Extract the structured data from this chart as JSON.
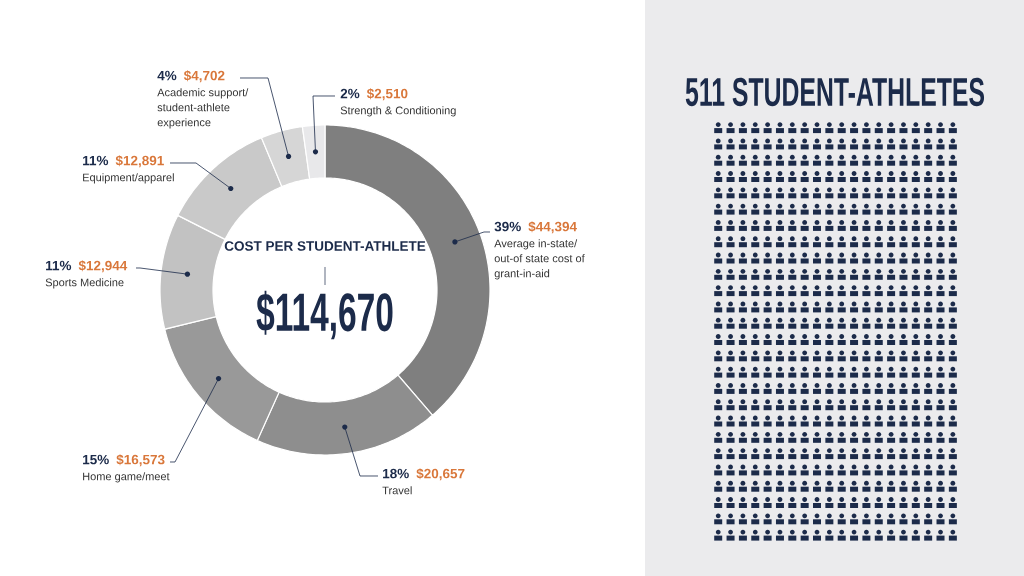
{
  "chart_data": {
    "type": "donut",
    "title": "COST PER STUDENT-ATHLETE",
    "subtitle": "$114,670",
    "categories": [
      "Average in-state/ out-of state cost of grant-in-aid",
      "Travel",
      "Home game/meet",
      "Sports Medicine",
      "Equipment/apparel",
      "Academic support/ student-athlete experience",
      "Strength & Conditioning"
    ],
    "values": [
      44394,
      20657,
      16573,
      12944,
      12891,
      4702,
      2510
    ],
    "colors": [
      "#7f7f7f",
      "#8e8e8e",
      "#999999",
      "#c2c2c2",
      "#c9c9c9",
      "#d6d6d6",
      "#e8e8ea"
    ],
    "value_labels": [
      "$44,394",
      "$20,657",
      "$16,573",
      "$12,944",
      "$12,891",
      "$4,702",
      "$2,510"
    ],
    "annotations": [
      {
        "text": "39%",
        "x": "Average in-state/ out-of state cost of grant-in-aid"
      },
      {
        "text": "18%",
        "x": "Travel"
      },
      {
        "text": "15%",
        "x": "Home game/meet"
      },
      {
        "text": "11%",
        "x": "Sports Medicine"
      },
      {
        "text": "11%",
        "x": "Equipment/apparel"
      },
      {
        "text": "4%",
        "x": "Academic support/ student-athlete experience"
      },
      {
        "text": "2%",
        "x": "Strength & Conditioning"
      },
      "511 STUDENT-ATHLETES"
    ]
  }
}
